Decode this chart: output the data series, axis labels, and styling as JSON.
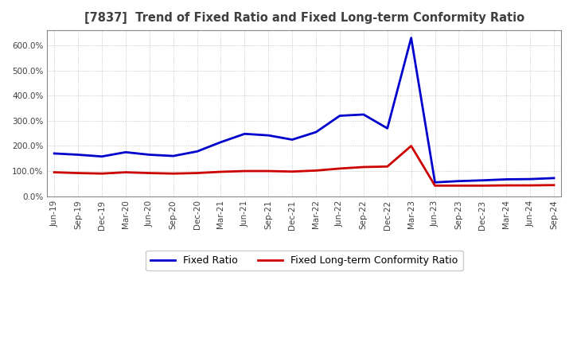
{
  "title": "[7837]  Trend of Fixed Ratio and Fixed Long-term Conformity Ratio",
  "x_labels": [
    "Jun-19",
    "Sep-19",
    "Dec-19",
    "Mar-20",
    "Jun-20",
    "Sep-20",
    "Dec-20",
    "Mar-21",
    "Jun-21",
    "Sep-21",
    "Dec-21",
    "Mar-22",
    "Jun-22",
    "Sep-22",
    "Dec-22",
    "Mar-23",
    "Jun-23",
    "Sep-23",
    "Dec-23",
    "Mar-24",
    "Jun-24",
    "Sep-24"
  ],
  "fixed_ratio": [
    170,
    165,
    158,
    175,
    165,
    160,
    178,
    215,
    248,
    242,
    225,
    255,
    320,
    325,
    270,
    630,
    55,
    60,
    63,
    67,
    68,
    72
  ],
  "fixed_lt_ratio": [
    95,
    92,
    90,
    95,
    92,
    90,
    92,
    97,
    100,
    100,
    98,
    102,
    110,
    116,
    118,
    200,
    42,
    42,
    42,
    43,
    43,
    44
  ],
  "fixed_ratio_color": "#0000cc",
  "fixed_lt_ratio_color": "#cc0000",
  "ylim": [
    0,
    660
  ],
  "yticks": [
    0,
    100,
    200,
    300,
    400,
    500,
    600
  ],
  "background_color": "#ffffff",
  "grid_color": "#aaaaaa",
  "legend_fixed": "Fixed Ratio",
  "legend_fixed_lt": "Fixed Long-term Conformity Ratio",
  "title_color": "#404040",
  "tick_color": "#404040"
}
